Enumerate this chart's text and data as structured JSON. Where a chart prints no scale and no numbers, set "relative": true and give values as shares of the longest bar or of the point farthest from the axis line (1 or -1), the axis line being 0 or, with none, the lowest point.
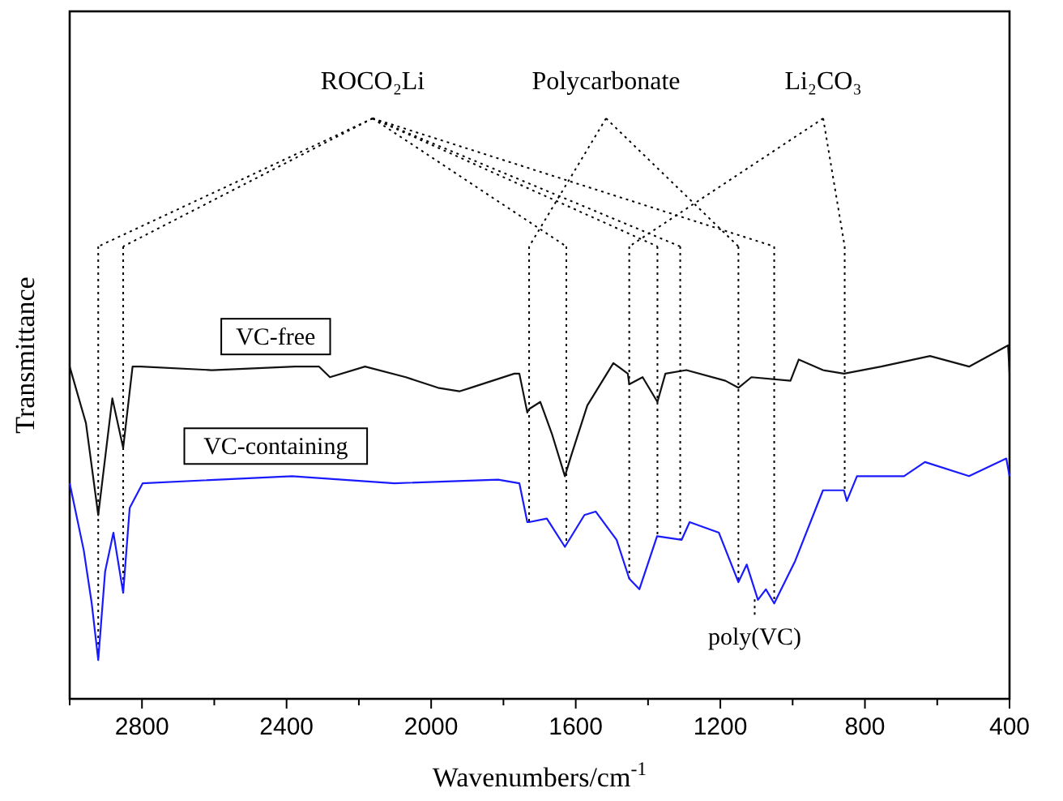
{
  "chart_data": {
    "type": "line",
    "relative": true,
    "xlabel": "Wavenumbers/cm$^{-1}$",
    "ylabel": "Transmittance",
    "xlim": [
      3000,
      400
    ],
    "xticks": [
      {
        "value": 3000,
        "label": null
      },
      2800,
      {
        "value": 2600,
        "label": null
      },
      2400,
      {
        "value": 2200,
        "label": null
      },
      2000,
      {
        "value": 1800,
        "label": null
      },
      1600,
      {
        "value": 1400,
        "label": null
      },
      1200,
      {
        "value": 1000,
        "label": null
      },
      800,
      {
        "value": 600,
        "label": null
      },
      400
    ],
    "legend": false,
    "line_style": "solid",
    "marker": "none",
    "series": [
      {
        "name": "VC-free",
        "color": "#111111",
        "x": [
          3000,
          2955,
          2921,
          2882,
          2852,
          2826,
          2804,
          2607,
          2377,
          2310,
          2280,
          2183,
          2070,
          1981,
          1922,
          1891,
          1770,
          1756,
          1734,
          1729,
          1698,
          1666,
          1630,
          1612,
          1568,
          1496,
          1456,
          1452,
          1415,
          1374,
          1352,
          1294,
          1186,
          1150,
          1114,
          1006,
          983,
          916,
          858,
          755,
          620,
          512,
          404,
          400
        ],
        "values": [
          0.94,
          0.78,
          0.52,
          0.85,
          0.71,
          0.94,
          0.94,
          0.93,
          0.94,
          0.94,
          0.91,
          0.94,
          0.91,
          0.88,
          0.87,
          0.88,
          0.92,
          0.92,
          0.81,
          0.82,
          0.84,
          0.75,
          0.63,
          0.69,
          0.83,
          0.95,
          0.92,
          0.89,
          0.91,
          0.84,
          0.92,
          0.93,
          0.9,
          0.88,
          0.91,
          0.9,
          0.96,
          0.93,
          0.92,
          0.94,
          0.97,
          0.94,
          1,
          0.92
        ]
      },
      {
        "name": "VC-containing",
        "color": "#1a1aff",
        "x": [
          3000,
          2961,
          2939,
          2921,
          2902,
          2879,
          2852,
          2834,
          2798,
          2385,
          2102,
          1815,
          1756,
          1734,
          1729,
          1680,
          1630,
          1576,
          1545,
          1487,
          1452,
          1424,
          1375,
          1307,
          1285,
          1204,
          1150,
          1127,
          1096,
          1074,
          1051,
          993,
          916,
          858,
          850,
          822,
          692,
          634,
          512,
          409,
          400
        ],
        "values": [
          0.61,
          0.42,
          0.27,
          0.11,
          0.36,
          0.47,
          0.3,
          0.54,
          0.61,
          0.63,
          0.61,
          0.62,
          0.61,
          0.5,
          0.5,
          0.51,
          0.43,
          0.52,
          0.53,
          0.45,
          0.34,
          0.31,
          0.46,
          0.45,
          0.5,
          0.47,
          0.33,
          0.38,
          0.28,
          0.31,
          0.27,
          0.39,
          0.59,
          0.59,
          0.56,
          0.63,
          0.63,
          0.67,
          0.63,
          0.68,
          0.63
        ]
      }
    ],
    "ref_lines": [
      {
        "axis": "x",
        "value": 2921,
        "line_style": "dotted"
      },
      {
        "axis": "x",
        "value": 2852,
        "line_style": "dotted"
      },
      {
        "axis": "x",
        "value": 1729,
        "line_style": "dotted"
      },
      {
        "axis": "x",
        "value": 1626,
        "line_style": "dotted"
      },
      {
        "axis": "x",
        "value": 1452,
        "line_style": "dotted"
      },
      {
        "axis": "x",
        "value": 1374,
        "line_style": "dotted"
      },
      {
        "axis": "x",
        "value": 1311,
        "line_style": "dotted"
      },
      {
        "axis": "x",
        "value": 1150,
        "line_style": "dotted"
      },
      {
        "axis": "x",
        "value": 1051,
        "line_style": "dotted"
      },
      {
        "axis": "x",
        "value": 856,
        "line_style": "dotted"
      }
    ],
    "annotations": [
      "ROCO₂Li",
      "Polycarbonate",
      "Li₂CO₃",
      {
        "text": "poly(VC)",
        "x": 1105
      }
    ]
  }
}
